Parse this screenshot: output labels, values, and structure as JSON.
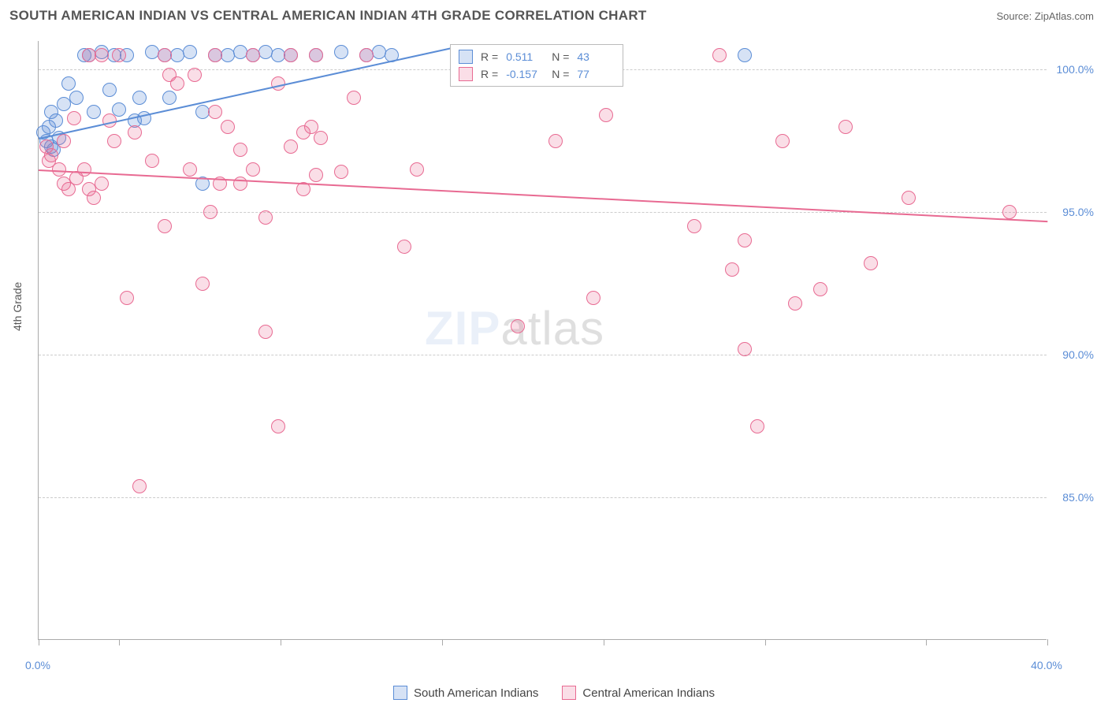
{
  "header": {
    "title": "SOUTH AMERICAN INDIAN VS CENTRAL AMERICAN INDIAN 4TH GRADE CORRELATION CHART",
    "source": "Source: ZipAtlas.com"
  },
  "chart": {
    "type": "scatter",
    "ylabel": "4th Grade",
    "xlim": [
      0,
      40
    ],
    "ylim": [
      80,
      101
    ],
    "yticks": [
      {
        "value": 85.0,
        "label": "85.0%"
      },
      {
        "value": 90.0,
        "label": "90.0%"
      },
      {
        "value": 95.0,
        "label": "95.0%"
      },
      {
        "value": 100.0,
        "label": "100.0%"
      }
    ],
    "xtick_positions": [
      0,
      3.2,
      9.6,
      16.0,
      22.4,
      28.8,
      35.2,
      40.0
    ],
    "xtick_labels": [
      {
        "pos": 0,
        "label": "0.0%"
      },
      {
        "pos": 40,
        "label": "40.0%"
      }
    ],
    "background_color": "#ffffff",
    "grid_color": "#cccccc",
    "axis_color": "#aaaaaa",
    "tick_label_color": "#5b8dd6",
    "marker_radius": 9,
    "marker_opacity": 0.45,
    "watermark": {
      "text_zip": "ZIP",
      "text_atlas": "atlas"
    },
    "series": [
      {
        "name": "South American Indians",
        "color": "#5b8dd6",
        "fill": "rgba(91,141,214,0.25)",
        "stroke": "#5b8dd6",
        "R": "0.511",
        "N": "43",
        "trend": {
          "x1": 0,
          "y1": 97.6,
          "x2": 16.5,
          "y2": 100.8
        },
        "points": [
          [
            0.2,
            97.8
          ],
          [
            0.3,
            97.5
          ],
          [
            0.4,
            98.0
          ],
          [
            0.5,
            97.3
          ],
          [
            0.6,
            97.2
          ],
          [
            0.8,
            97.6
          ],
          [
            0.5,
            98.5
          ],
          [
            1.0,
            98.8
          ],
          [
            1.2,
            99.5
          ],
          [
            1.5,
            99.0
          ],
          [
            1.8,
            100.5
          ],
          [
            2.0,
            100.5
          ],
          [
            2.2,
            98.5
          ],
          [
            2.5,
            100.6
          ],
          [
            2.8,
            99.3
          ],
          [
            3.0,
            100.5
          ],
          [
            3.2,
            98.6
          ],
          [
            3.5,
            100.5
          ],
          [
            3.8,
            98.2
          ],
          [
            4.0,
            99.0
          ],
          [
            4.2,
            98.3
          ],
          [
            4.5,
            100.6
          ],
          [
            5.0,
            100.5
          ],
          [
            5.2,
            99.0
          ],
          [
            5.5,
            100.5
          ],
          [
            6.0,
            100.6
          ],
          [
            6.5,
            98.5
          ],
          [
            6.5,
            96.0
          ],
          [
            7.0,
            100.5
          ],
          [
            7.5,
            100.5
          ],
          [
            8.0,
            100.6
          ],
          [
            8.5,
            100.5
          ],
          [
            9.0,
            100.6
          ],
          [
            9.5,
            100.5
          ],
          [
            10.0,
            100.5
          ],
          [
            11.0,
            100.5
          ],
          [
            12.0,
            100.6
          ],
          [
            13.0,
            100.5
          ],
          [
            13.5,
            100.6
          ],
          [
            14.0,
            100.5
          ],
          [
            21.5,
            100.5
          ],
          [
            28.0,
            100.5
          ],
          [
            0.7,
            98.2
          ]
        ]
      },
      {
        "name": "Central American Indians",
        "color": "#e86a92",
        "fill": "rgba(232,106,146,0.22)",
        "stroke": "#e86a92",
        "R": "-0.157",
        "N": "77",
        "trend": {
          "x1": 0,
          "y1": 96.5,
          "x2": 40,
          "y2": 94.7
        },
        "points": [
          [
            0.3,
            97.3
          ],
          [
            0.5,
            97.0
          ],
          [
            0.8,
            96.5
          ],
          [
            1.0,
            97.5
          ],
          [
            1.0,
            96.0
          ],
          [
            1.2,
            95.8
          ],
          [
            1.5,
            96.2
          ],
          [
            1.8,
            96.5
          ],
          [
            2.0,
            95.8
          ],
          [
            2.0,
            100.5
          ],
          [
            2.2,
            95.5
          ],
          [
            2.5,
            96.0
          ],
          [
            2.5,
            100.5
          ],
          [
            3.0,
            97.5
          ],
          [
            3.2,
            100.5
          ],
          [
            3.5,
            92.0
          ],
          [
            3.8,
            97.8
          ],
          [
            4.0,
            85.4
          ],
          [
            4.5,
            96.8
          ],
          [
            5.0,
            100.5
          ],
          [
            5.0,
            94.5
          ],
          [
            5.2,
            99.8
          ],
          [
            5.5,
            99.5
          ],
          [
            6.0,
            96.5
          ],
          [
            6.5,
            92.5
          ],
          [
            6.8,
            95.0
          ],
          [
            7.0,
            100.5
          ],
          [
            7.0,
            98.5
          ],
          [
            7.2,
            96.0
          ],
          [
            7.5,
            98.0
          ],
          [
            8.0,
            97.2
          ],
          [
            8.0,
            96.0
          ],
          [
            8.5,
            100.5
          ],
          [
            8.5,
            96.5
          ],
          [
            9.0,
            94.8
          ],
          [
            9.0,
            90.8
          ],
          [
            9.5,
            87.5
          ],
          [
            9.5,
            99.5
          ],
          [
            10.0,
            97.3
          ],
          [
            10.0,
            100.5
          ],
          [
            10.5,
            97.8
          ],
          [
            10.5,
            95.8
          ],
          [
            10.8,
            98.0
          ],
          [
            11.0,
            100.5
          ],
          [
            11.0,
            96.3
          ],
          [
            11.2,
            97.6
          ],
          [
            12.0,
            96.4
          ],
          [
            12.5,
            99.0
          ],
          [
            13.0,
            100.5
          ],
          [
            14.5,
            93.8
          ],
          [
            15.0,
            96.5
          ],
          [
            17.5,
            100.5
          ],
          [
            19.0,
            100.5
          ],
          [
            19.0,
            91.0
          ],
          [
            20.0,
            100.5
          ],
          [
            20.5,
            97.5
          ],
          [
            21.5,
            100.5
          ],
          [
            22.0,
            92.0
          ],
          [
            22.5,
            100.5
          ],
          [
            22.5,
            98.4
          ],
          [
            26.0,
            94.5
          ],
          [
            27.0,
            100.5
          ],
          [
            27.5,
            93.0
          ],
          [
            28.0,
            94.0
          ],
          [
            28.0,
            90.2
          ],
          [
            28.5,
            87.5
          ],
          [
            29.5,
            97.5
          ],
          [
            30.0,
            91.8
          ],
          [
            31.0,
            92.3
          ],
          [
            32.0,
            98.0
          ],
          [
            33.0,
            93.2
          ],
          [
            34.5,
            95.5
          ],
          [
            38.5,
            95.0
          ],
          [
            0.4,
            96.8
          ],
          [
            1.4,
            98.3
          ],
          [
            2.8,
            98.2
          ],
          [
            6.2,
            99.8
          ]
        ]
      }
    ],
    "legend": [
      {
        "label": "South American Indians",
        "fill": "rgba(91,141,214,0.25)",
        "stroke": "#5b8dd6"
      },
      {
        "label": "Central American Indians",
        "fill": "rgba(232,106,146,0.22)",
        "stroke": "#e86a92"
      }
    ]
  }
}
